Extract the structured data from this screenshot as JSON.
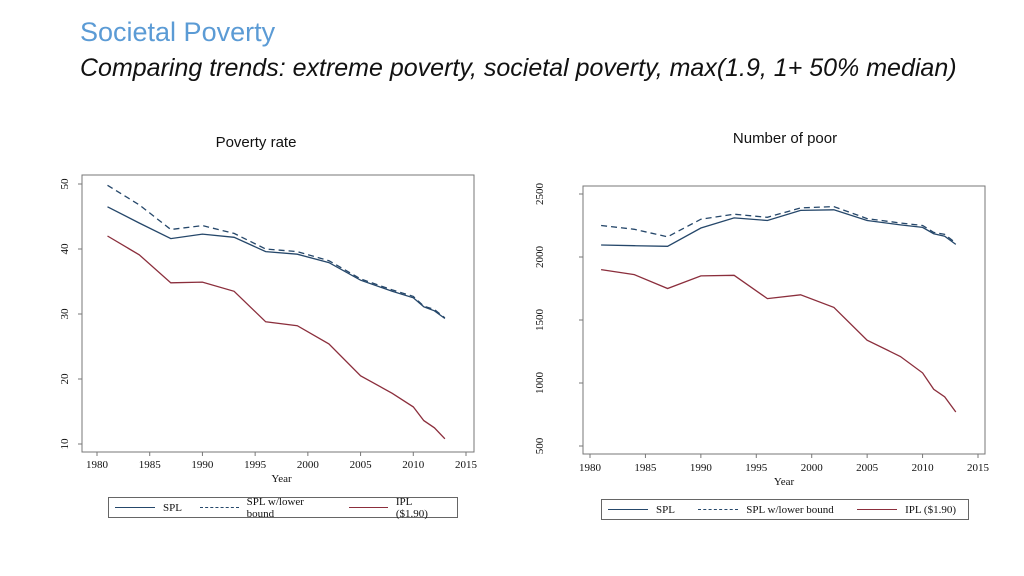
{
  "header": {
    "title": "Societal Poverty",
    "subtitle": "Comparing trends: extreme poverty, societal poverty, max(1.9, 1+ 50% median)"
  },
  "colors": {
    "title": "#5b9bd5",
    "spl": "#25476a",
    "ipl": "#8b2e3c"
  },
  "chart_data": [
    {
      "type": "line",
      "title": "Poverty rate",
      "xlabel": "Year",
      "ylabel": "",
      "xlim": [
        1980,
        2015
      ],
      "ylim": [
        10,
        50
      ],
      "xticks": [
        1980,
        1985,
        1990,
        1995,
        2000,
        2005,
        2010,
        2015
      ],
      "yticks": [
        10,
        20,
        30,
        40,
        50
      ],
      "grid": false,
      "legend": "bottom",
      "x": [
        1981,
        1984,
        1987,
        1990,
        1993,
        1996,
        1999,
        2002,
        2005,
        2008,
        2010,
        2011,
        2012,
        2013
      ],
      "series": [
        {
          "name": "SPL",
          "style": "solid",
          "color": "#25476a",
          "values": [
            46.5,
            44.0,
            41.6,
            42.3,
            41.8,
            39.6,
            39.2,
            37.9,
            35.2,
            33.5,
            32.5,
            31.1,
            30.5,
            29.3
          ]
        },
        {
          "name": "SPL w/lower bound",
          "style": "dashed",
          "color": "#25476a",
          "values": [
            49.8,
            46.8,
            43.0,
            43.6,
            42.4,
            40.0,
            39.6,
            38.2,
            35.4,
            33.7,
            32.7,
            31.2,
            30.7,
            29.4
          ]
        },
        {
          "name": "IPL ($1.90)",
          "style": "solid",
          "color": "#8b2e3c",
          "values": [
            42.0,
            39.1,
            34.8,
            34.9,
            33.5,
            28.8,
            28.2,
            25.4,
            20.5,
            17.8,
            15.7,
            13.6,
            12.5,
            10.8
          ]
        }
      ]
    },
    {
      "type": "line",
      "title": "Number of poor",
      "xlabel": "Year",
      "ylabel": "",
      "xlim": [
        1980,
        2015
      ],
      "ylim": [
        500,
        2500
      ],
      "xticks": [
        1980,
        1985,
        1990,
        1995,
        2000,
        2005,
        2010,
        2015
      ],
      "yticks": [
        500,
        1000,
        1500,
        2000,
        2500
      ],
      "grid": false,
      "legend": "bottom",
      "x": [
        1981,
        1984,
        1987,
        1990,
        1993,
        1996,
        1999,
        2002,
        2005,
        2008,
        2010,
        2011,
        2012,
        2013
      ],
      "series": [
        {
          "name": "SPL",
          "style": "solid",
          "color": "#25476a",
          "values": [
            2095,
            2090,
            2085,
            2230,
            2310,
            2290,
            2370,
            2375,
            2290,
            2255,
            2235,
            2185,
            2165,
            2100
          ]
        },
        {
          "name": "SPL w/lower bound",
          "style": "dashed",
          "color": "#25476a",
          "values": [
            2250,
            2220,
            2160,
            2300,
            2340,
            2315,
            2390,
            2400,
            2305,
            2270,
            2250,
            2195,
            2180,
            2110
          ]
        },
        {
          "name": "IPL ($1.90)",
          "style": "solid",
          "color": "#8b2e3c",
          "values": [
            1900,
            1860,
            1750,
            1850,
            1855,
            1670,
            1700,
            1600,
            1340,
            1210,
            1080,
            950,
            890,
            770
          ]
        }
      ]
    }
  ]
}
